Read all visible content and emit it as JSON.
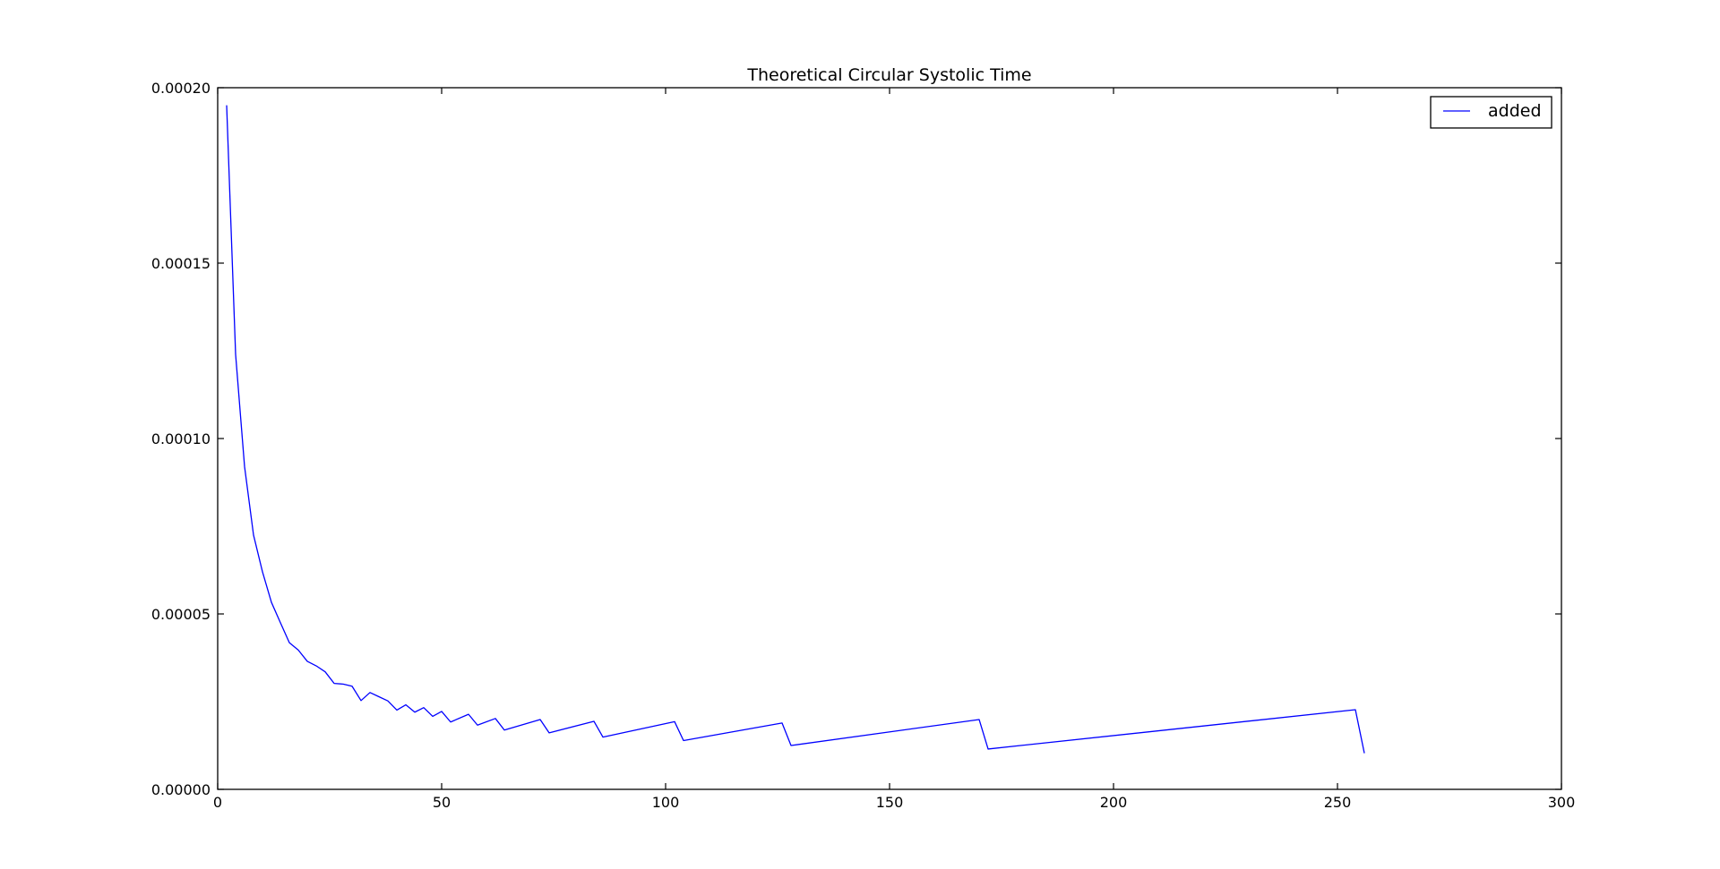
{
  "chart_data": {
    "type": "line",
    "title": "Theoretical Circular Systolic Time",
    "xlabel": "",
    "ylabel": "",
    "xlim": [
      0,
      300
    ],
    "ylim": [
      0,
      0.0002
    ],
    "x_ticks": [
      0,
      50,
      100,
      150,
      200,
      250,
      300
    ],
    "x_tick_labels": [
      "0",
      "50",
      "100",
      "150",
      "200",
      "250",
      "300"
    ],
    "y_ticks": [
      0,
      5e-05,
      0.0001,
      0.00015,
      0.0002
    ],
    "y_tick_labels": [
      "0.00000",
      "0.00005",
      "0.00010",
      "0.00015",
      "0.00020"
    ],
    "grid": false,
    "legend_position": "top-right",
    "series": [
      {
        "name": "added",
        "color": "#0000ff",
        "points": [
          [
            2,
            0.000195
          ],
          [
            4,
            0.000124
          ],
          [
            6,
            9.2e-05
          ],
          [
            8,
            7.25e-05
          ],
          [
            10,
            6.2e-05
          ],
          [
            12,
            5.33e-05
          ],
          [
            14,
            4.75e-05
          ],
          [
            16,
            4.18e-05
          ],
          [
            18,
            3.97e-05
          ],
          [
            20,
            3.65e-05
          ],
          [
            22,
            3.52e-05
          ],
          [
            24,
            3.35e-05
          ],
          [
            26,
            3.02e-05
          ],
          [
            28,
            3e-05
          ],
          [
            30,
            2.94e-05
          ],
          [
            32,
            2.53e-05
          ],
          [
            34,
            2.76e-05
          ],
          [
            36,
            2.64e-05
          ],
          [
            38,
            2.52e-05
          ],
          [
            40,
            2.26e-05
          ],
          [
            42,
            2.41e-05
          ],
          [
            44,
            2.2e-05
          ],
          [
            46,
            2.33e-05
          ],
          [
            48,
            2.08e-05
          ],
          [
            50,
            2.22e-05
          ],
          [
            52,
            1.92e-05
          ],
          [
            56,
            2.14e-05
          ],
          [
            58,
            1.83e-05
          ],
          [
            62,
            2.02e-05
          ],
          [
            64,
            1.69e-05
          ],
          [
            72,
            1.99e-05
          ],
          [
            74,
            1.61e-05
          ],
          [
            84,
            1.94e-05
          ],
          [
            86,
            1.49e-05
          ],
          [
            102,
            1.93e-05
          ],
          [
            104,
            1.39e-05
          ],
          [
            126,
            1.89e-05
          ],
          [
            128,
            1.25e-05
          ],
          [
            170,
            1.99e-05
          ],
          [
            172,
            1.15e-05
          ],
          [
            254,
            2.27e-05
          ],
          [
            256,
            1.03e-05
          ]
        ]
      }
    ]
  }
}
